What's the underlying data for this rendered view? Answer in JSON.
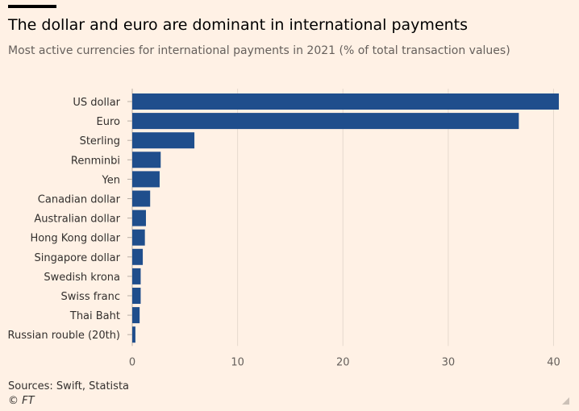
{
  "header": {
    "title": "The dollar and euro are dominant in international payments",
    "subtitle": "Most active currencies for international payments in 2021 (% of total transaction values)"
  },
  "footer": {
    "source": "Sources: Swift, Statista",
    "credit": "© FT"
  },
  "colors": {
    "bar": "#1F4E8C",
    "background": "#FFF1E5",
    "grid": "#E6D9CE"
  },
  "chart_data": {
    "type": "bar",
    "orientation": "horizontal",
    "title": "The dollar and euro are dominant in international payments",
    "subtitle": "Most active currencies for international payments in 2021 (% of total transaction values)",
    "categories": [
      "US dollar",
      "Euro",
      "Sterling",
      "Renminbi",
      "Yen",
      "Canadian dollar",
      "Australian dollar",
      "Hong Kong dollar",
      "Singapore dollar",
      "Swedish krona",
      "Swiss franc",
      "Thai Baht",
      "Russian rouble (20th)"
    ],
    "values": [
      40.5,
      36.7,
      5.9,
      2.7,
      2.6,
      1.7,
      1.3,
      1.2,
      1.0,
      0.8,
      0.8,
      0.7,
      0.3
    ],
    "xlabel": "",
    "ylabel": "",
    "xlim": [
      0,
      40.5
    ],
    "xticks": [
      0,
      10,
      20,
      30,
      40
    ],
    "grid": "vertical"
  }
}
